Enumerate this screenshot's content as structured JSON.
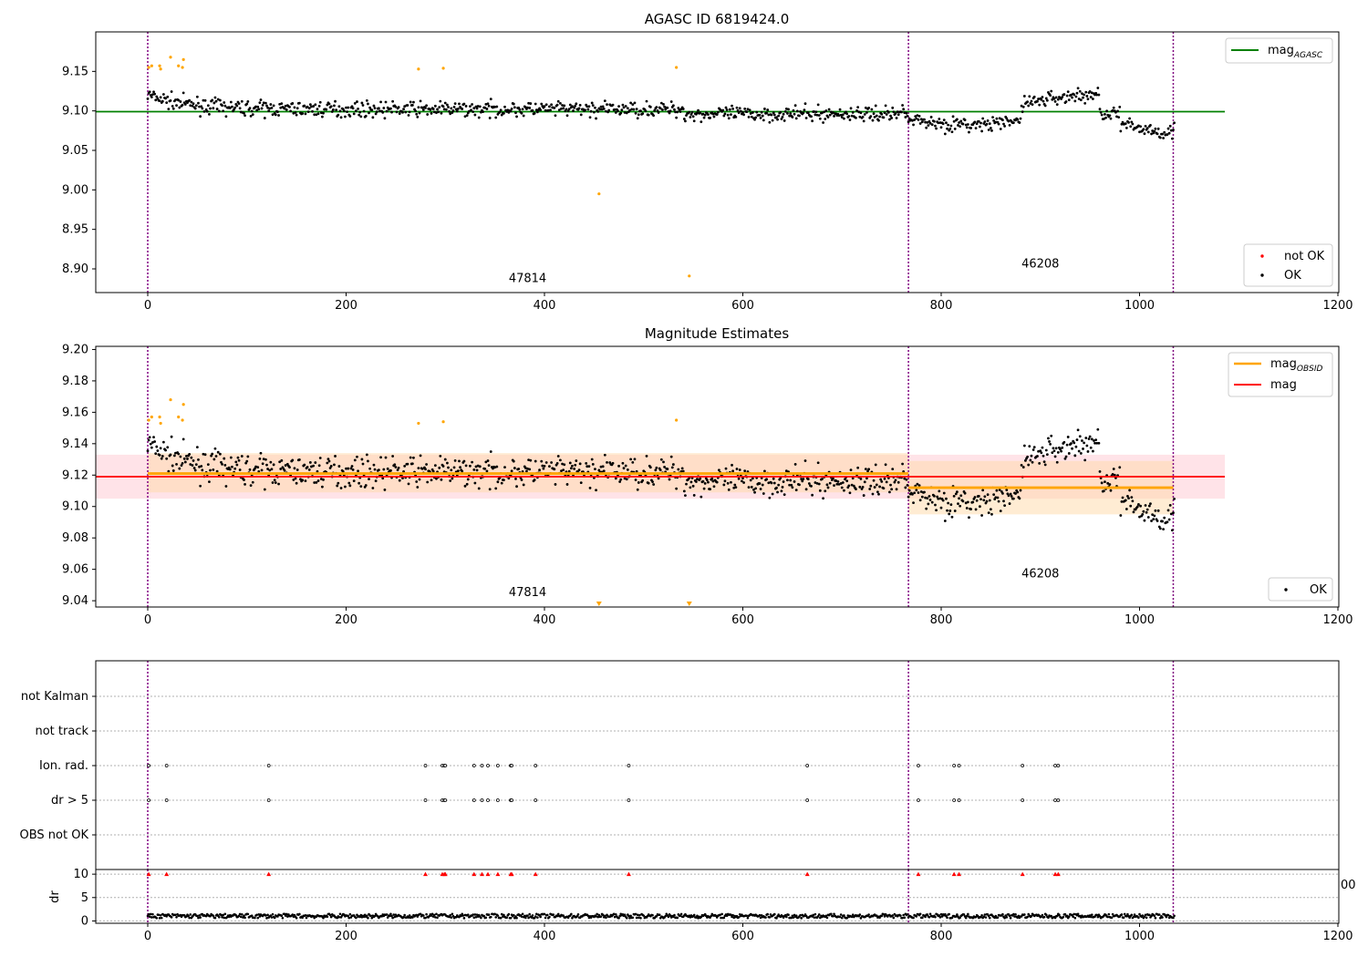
{
  "colors": {
    "ok": "#000000",
    "not_ok": "#ff0000",
    "flagged": "#ffa500",
    "mag_agasc_line": "#008000",
    "mag_obsid_line": "#ffa500",
    "mag_line": "#ff0000",
    "mag_band": "#ffc0cb",
    "obsid_band": "#ffd9a8",
    "obsid_vline": "#800080"
  },
  "chart_data": [
    {
      "type": "scatter",
      "title": "AGASC ID 6819424.0",
      "xlim": [
        -52,
        1200
      ],
      "ylim": [
        8.87,
        9.2
      ],
      "xticks": [
        0,
        200,
        400,
        600,
        800,
        1000,
        1200
      ],
      "yticks": [
        8.9,
        8.95,
        9.0,
        9.05,
        9.1,
        9.15
      ],
      "ytick_labels": [
        "8.90",
        "8.95",
        "9.00",
        "9.05",
        "9.10",
        "9.15"
      ],
      "xtick_labels": [
        "0",
        "200",
        "400",
        "600",
        "800",
        "1000",
        "1200"
      ],
      "legend_lines": [
        {
          "label": "mag",
          "subscript": "AGASC",
          "color": "#008000"
        }
      ],
      "legend_points": [
        {
          "label": "not OK",
          "color": "#ff0000"
        },
        {
          "label": "OK",
          "color": "#000000"
        }
      ],
      "mag_agasc": 9.099,
      "obsid_boundaries": [
        0,
        767,
        1034
      ],
      "obsid_labels": [
        {
          "text": "47814",
          "x": 383,
          "y": 8.883
        },
        {
          "text": "46208",
          "x": 900,
          "y": 8.902
        }
      ],
      "flagged_points": [
        [
          1,
          9.155
        ],
        [
          4,
          9.157
        ],
        [
          12,
          9.157
        ],
        [
          13,
          9.153
        ],
        [
          23,
          9.168
        ],
        [
          31,
          9.157
        ],
        [
          35,
          9.155
        ],
        [
          36,
          9.165
        ],
        [
          273,
          9.153
        ],
        [
          298,
          9.154
        ],
        [
          533,
          9.155
        ],
        [
          455,
          8.995
        ],
        [
          546,
          8.891
        ]
      ]
    },
    {
      "type": "scatter",
      "title": "Magnitude Estimates",
      "xlim": [
        -52,
        1200
      ],
      "ylim": [
        9.036,
        9.202
      ],
      "xticks": [
        0,
        200,
        400,
        600,
        800,
        1000,
        1200
      ],
      "yticks": [
        9.04,
        9.06,
        9.08,
        9.1,
        9.12,
        9.14,
        9.16,
        9.18,
        9.2
      ],
      "ytick_labels": [
        "9.04",
        "9.06",
        "9.08",
        "9.10",
        "9.12",
        "9.14",
        "9.16",
        "9.18",
        "9.20"
      ],
      "xtick_labels": [
        "0",
        "200",
        "400",
        "600",
        "800",
        "1000",
        "1200"
      ],
      "legend_lines": [
        {
          "label": "mag",
          "subscript": "OBSID",
          "color": "#ffa500"
        },
        {
          "label": "mag",
          "subscript": "",
          "color": "#ff0000"
        }
      ],
      "legend_points": [
        {
          "label": "OK",
          "color": "#000000"
        }
      ],
      "mag": 9.119,
      "mag_band": [
        9.105,
        9.133
      ],
      "mag_obsid": [
        {
          "x": [
            0,
            767
          ],
          "value": 9.121,
          "band": [
            9.109,
            9.134
          ]
        },
        {
          "x": [
            767,
            1034
          ],
          "value": 9.112,
          "band": [
            9.095,
            9.129
          ]
        }
      ],
      "obsid_boundaries": [
        0,
        767,
        1034
      ],
      "obsid_labels": [
        {
          "text": "47814",
          "x": 383,
          "y": 9.043
        },
        {
          "text": "46208",
          "x": 900,
          "y": 9.055
        }
      ],
      "flagged_points": [
        [
          1,
          9.155
        ],
        [
          4,
          9.157
        ],
        [
          12,
          9.157
        ],
        [
          13,
          9.153
        ],
        [
          23,
          9.168
        ],
        [
          31,
          9.157
        ],
        [
          35,
          9.155
        ],
        [
          36,
          9.165
        ],
        [
          273,
          9.153
        ],
        [
          298,
          9.154
        ],
        [
          533,
          9.155
        ]
      ],
      "offscale_markers": [
        455,
        546
      ]
    },
    {
      "type": "scatter",
      "title": "",
      "xlim": [
        -52,
        1200
      ],
      "categories": [
        "not Kalman",
        "not track",
        "Ion. rad.",
        "dr > 5",
        "OBS not OK"
      ],
      "flag_points": {
        "Ion. rad.": [
          1,
          19,
          122,
          280,
          297,
          299,
          300,
          329,
          337,
          343,
          353,
          366,
          367,
          391,
          485,
          665,
          777,
          813,
          818,
          882,
          915,
          918
        ],
        "dr > 5": [
          1,
          19,
          122,
          280,
          297,
          299,
          300,
          329,
          337,
          343,
          353,
          366,
          367,
          391,
          485,
          665,
          777,
          813,
          818,
          882,
          915,
          918
        ]
      },
      "obsid_boundaries": [
        0,
        767,
        1034
      ]
    },
    {
      "type": "scatter",
      "title": "",
      "ylabel": "dr",
      "xlim": [
        -52,
        1200
      ],
      "ylim": [
        -0.5,
        11
      ],
      "xticks": [
        0,
        200,
        400,
        600,
        800,
        1000,
        1200
      ],
      "xtick_labels": [
        "0",
        "200",
        "400",
        "600",
        "800",
        "1000",
        "1200"
      ],
      "yticks": [
        0,
        5,
        10
      ],
      "ytick_labels": [
        "0",
        "5",
        "10"
      ],
      "overlap_label": "00",
      "high_dr_points": [
        1,
        19,
        122,
        280,
        297,
        299,
        300,
        329,
        337,
        343,
        353,
        366,
        367,
        391,
        485,
        665,
        777,
        813,
        818,
        882,
        915,
        918
      ],
      "obsid_boundaries": [
        0,
        767,
        1034
      ]
    }
  ]
}
